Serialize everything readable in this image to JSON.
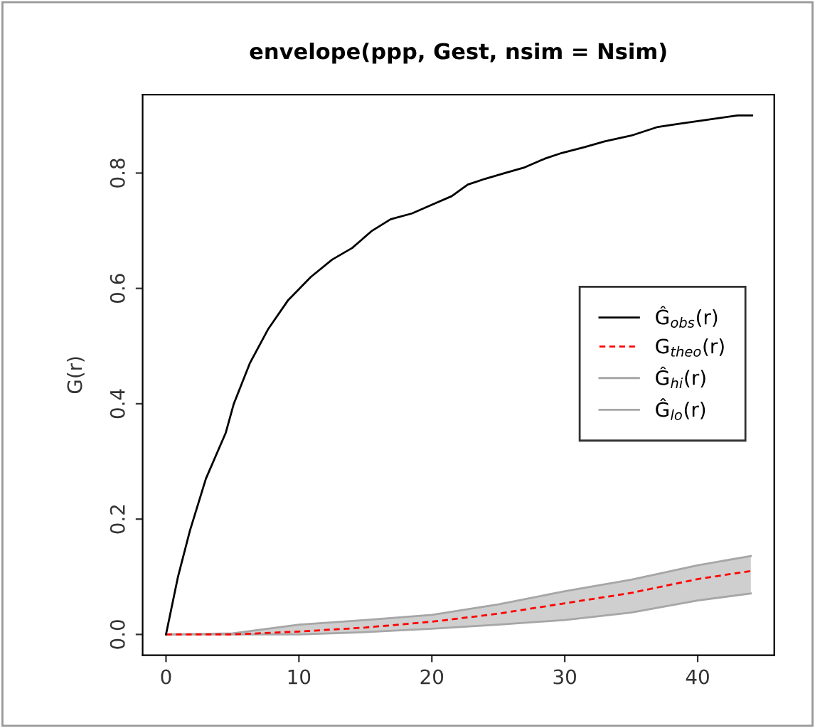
{
  "chart_data": {
    "type": "line",
    "title": "envelope(ppp, Gest, nsim = Nsim)",
    "ylabel": "G(r)",
    "xlim": [
      -1.76,
      45.76
    ],
    "ylim": [
      -0.036,
      0.936
    ],
    "xticks": [
      0,
      10,
      20,
      30,
      40
    ],
    "yticks": [
      {
        "value": 0,
        "label": "0.0"
      },
      0.2,
      0.4,
      0.6,
      0.8
    ],
    "grid": false,
    "legend": "right",
    "marker": "none",
    "series": [
      {
        "name": "Ĝ$_{obs}$(r)",
        "color": "#000000",
        "line_style": "solid",
        "x": [
          0,
          0.9,
          1.8,
          3,
          4.5,
          5.1,
          6.3,
          7.7,
          9.2,
          10.9,
          12.5,
          14,
          15.5,
          16.9,
          18.5,
          20,
          21.5,
          22.7,
          24,
          25.5,
          27,
          28.5,
          29.8,
          31.5,
          33,
          35,
          37,
          38.5,
          40,
          41.5,
          43,
          44.1
        ],
        "values": [
          0,
          0.1,
          0.18,
          0.27,
          0.35,
          0.4,
          0.47,
          0.53,
          0.58,
          0.62,
          0.65,
          0.67,
          0.7,
          0.72,
          0.73,
          0.745,
          0.76,
          0.78,
          0.79,
          0.8,
          0.81,
          0.825,
          0.835,
          0.845,
          0.855,
          0.865,
          0.88,
          0.885,
          0.89,
          0.895,
          0.9,
          0.9
        ]
      },
      {
        "name": "G$_{theo}$(r)",
        "color": "#ff0000",
        "line_style": "dashed",
        "x": [
          0,
          5,
          10,
          15,
          20,
          25,
          30,
          35,
          40,
          44
        ],
        "values": [
          0,
          0,
          0.005,
          0.012,
          0.022,
          0.036,
          0.054,
          0.072,
          0.096,
          0.11
        ],
        "lower": [
          0,
          0,
          0,
          0.004,
          0.01,
          0.017,
          0.025,
          0.038,
          0.059,
          0.071
        ],
        "upper": [
          0,
          0.002,
          0.017,
          0.025,
          0.034,
          0.052,
          0.075,
          0.095,
          0.12,
          0.136
        ]
      },
      {
        "name": "Ĝ$_{hi}$(r)",
        "color": "#a6a6a6",
        "line_style": "solid",
        "x": [
          0,
          5,
          10,
          15,
          20,
          25,
          30,
          35,
          40,
          44
        ],
        "values": [
          0,
          0.002,
          0.017,
          0.025,
          0.034,
          0.052,
          0.075,
          0.095,
          0.12,
          0.136
        ]
      },
      {
        "name": "Ĝ$_{lo}$(r)",
        "color": "#a6a6a6",
        "line_style": "solid",
        "x": [
          0,
          5,
          10,
          15,
          20,
          25,
          30,
          35,
          40,
          44
        ],
        "values": [
          0,
          0,
          0,
          0.004,
          0.01,
          0.017,
          0.025,
          0.038,
          0.059,
          0.071
        ]
      }
    ]
  }
}
